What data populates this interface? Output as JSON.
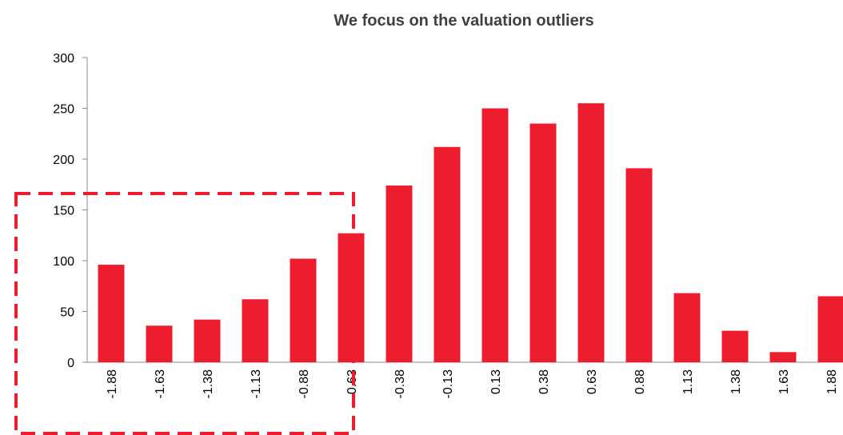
{
  "chart_data": {
    "type": "bar",
    "title": "We focus on the valuation outliers",
    "categories": [
      "-1.88",
      "-1.63",
      "-1.38",
      "-1.13",
      "-0.88",
      "-0.63",
      "-0.38",
      "-0.13",
      "0.13",
      "0.38",
      "0.63",
      "0.88",
      "1.13",
      "1.38",
      "1.63",
      "1.88"
    ],
    "values": [
      96,
      36,
      42,
      62,
      102,
      127,
      174,
      212,
      250,
      235,
      255,
      191,
      68,
      31,
      10,
      65
    ],
    "color": "#ed1c2e",
    "ylim": [
      0,
      300
    ],
    "yticks": [
      0,
      50,
      100,
      150,
      200,
      250,
      300
    ],
    "grid": false
  }
}
